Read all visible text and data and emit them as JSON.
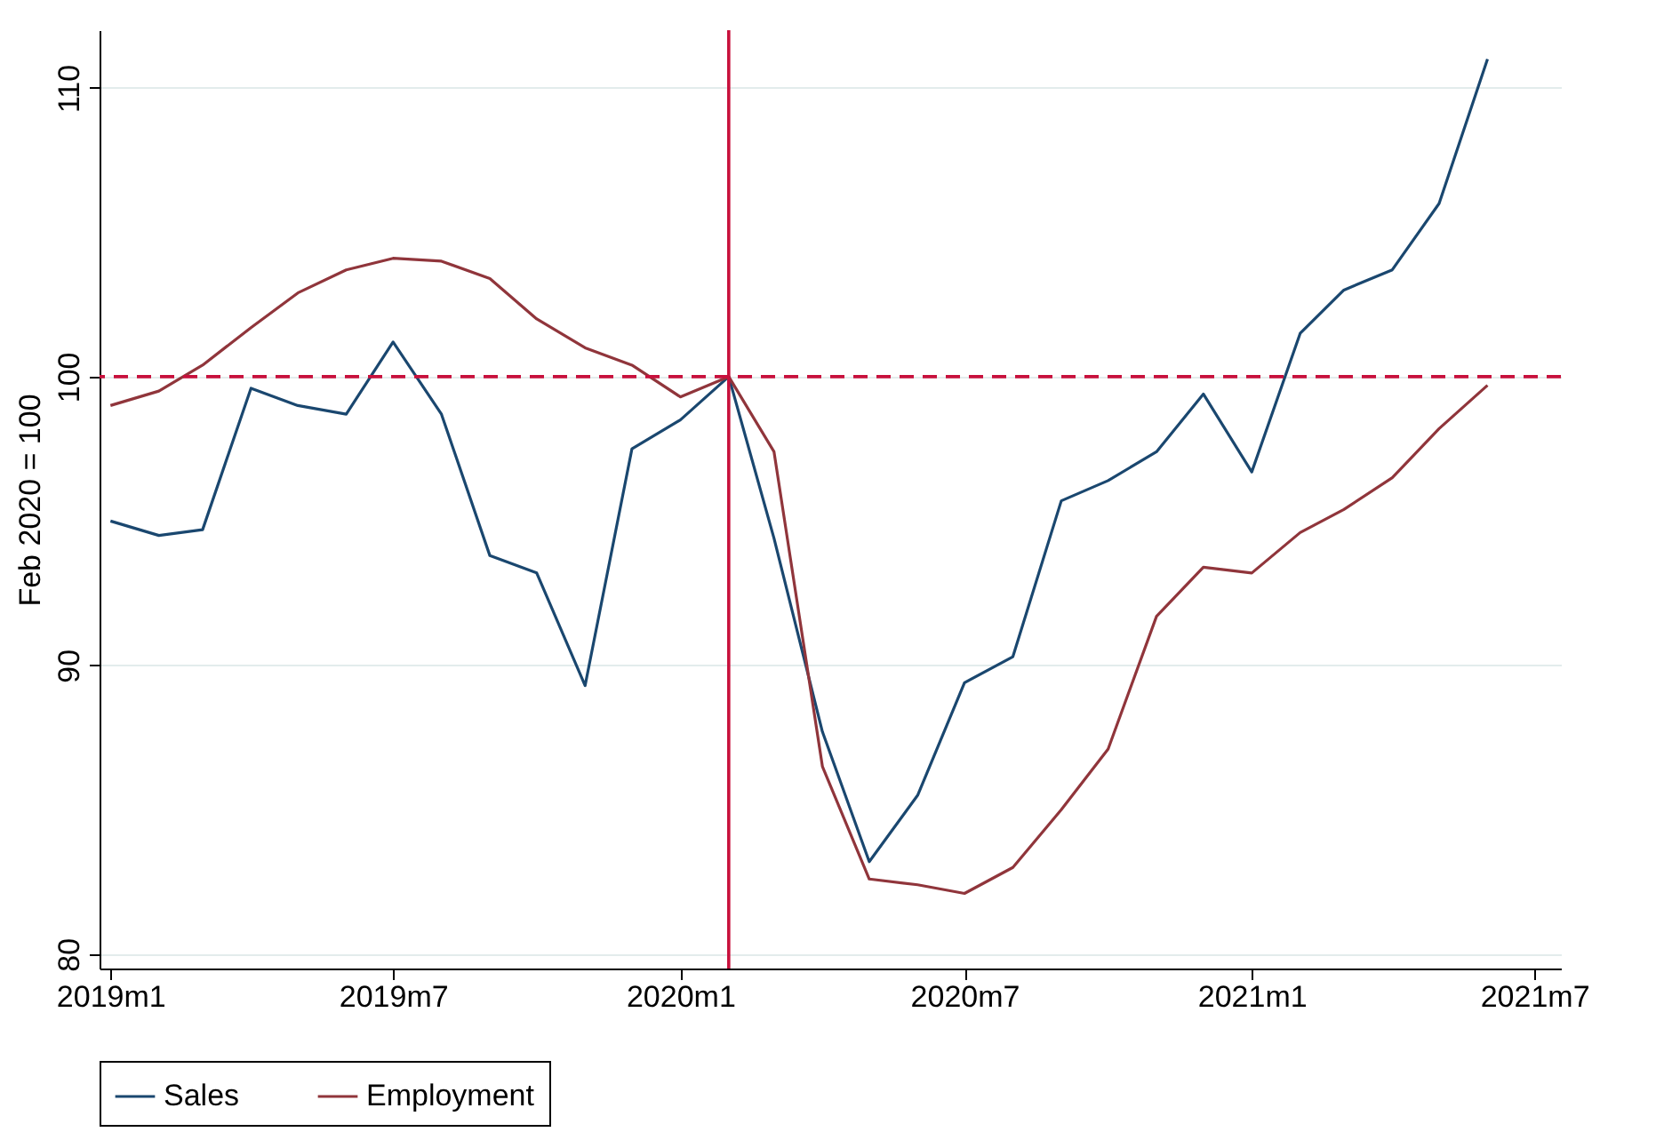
{
  "chart_data": {
    "type": "line",
    "ylabel": "Feb 2020 = 100",
    "x": [
      "2019-01",
      "2019-02",
      "2019-03",
      "2019-04",
      "2019-05",
      "2019-06",
      "2019-07",
      "2019-08",
      "2019-09",
      "2019-10",
      "2019-11",
      "2019-12",
      "2020-01",
      "2020-02",
      "2020-03",
      "2020-04",
      "2020-05",
      "2020-06",
      "2020-07",
      "2020-08",
      "2020-09",
      "2020-10",
      "2020-11",
      "2020-12",
      "2021-01",
      "2021-02",
      "2021-03",
      "2021-04",
      "2021-05",
      "2021-06"
    ],
    "series": [
      {
        "name": "Sales",
        "color": "#1a476f",
        "values": [
          95.0,
          94.5,
          94.7,
          99.6,
          99.0,
          98.7,
          101.2,
          98.7,
          93.8,
          93.2,
          89.3,
          97.5,
          98.5,
          100,
          94.4,
          87.7,
          83.2,
          85.5,
          89.4,
          90.3,
          95.7,
          96.4,
          97.4,
          99.4,
          96.7,
          101.5,
          103.0,
          103.7,
          106.0,
          111.0
        ]
      },
      {
        "name": "Employment",
        "color": "#90353b",
        "values": [
          99.0,
          99.5,
          100.4,
          101.7,
          102.9,
          103.7,
          104.1,
          104.0,
          103.4,
          102.0,
          101.0,
          100.4,
          99.3,
          100,
          97.4,
          86.5,
          82.6,
          82.4,
          82.1,
          83.0,
          85.0,
          87.1,
          91.7,
          93.4,
          93.2,
          94.6,
          95.4,
          96.5,
          98.2,
          99.7
        ]
      }
    ],
    "xlim": [
      "2018-12-25",
      "2021-07-18"
    ],
    "xticks": [
      {
        "value": "2019-01",
        "label": "2019m1"
      },
      {
        "value": "2019-07",
        "label": "2019m7"
      },
      {
        "value": "2020-01",
        "label": "2020m1"
      },
      {
        "value": "2020-07",
        "label": "2020m7"
      },
      {
        "value": "2021-01",
        "label": "2021m1"
      },
      {
        "value": "2021-07",
        "label": "2021m7"
      }
    ],
    "ylim": [
      79.5,
      112
    ],
    "yticks": [
      80,
      90,
      100,
      110
    ],
    "ref_lines": [
      {
        "axis": "y",
        "value": 100,
        "color": "#c8103c",
        "line_style": "dashed"
      },
      {
        "axis": "x",
        "value": "2020-02",
        "color": "#c8103c",
        "line_style": "solid"
      }
    ],
    "grid": "y",
    "legend": "bottom",
    "line_style": "solid",
    "marker": "none"
  }
}
